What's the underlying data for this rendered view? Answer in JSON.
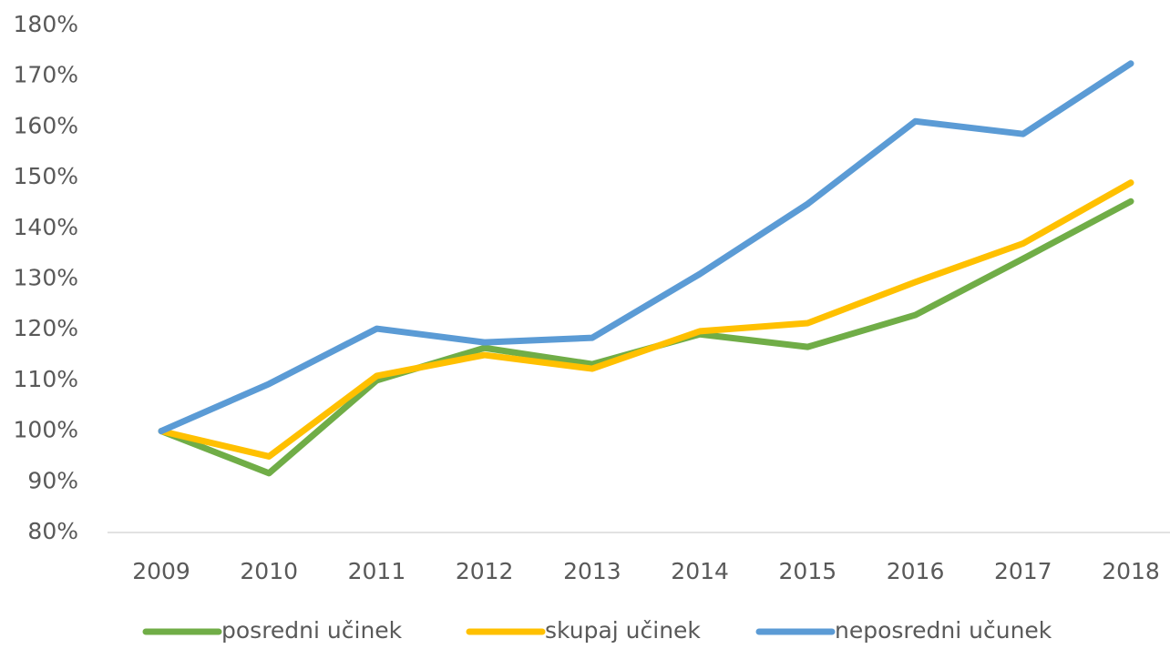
{
  "chart_data": {
    "type": "line",
    "categories": [
      "2009",
      "2010",
      "2011",
      "2012",
      "2013",
      "2014",
      "2015",
      "2016",
      "2017",
      "2018"
    ],
    "series": [
      {
        "name": "posredni učinek",
        "color": "#70ad47",
        "values": [
          100,
          91.7,
          110,
          116.4,
          113.2,
          119.1,
          116.6,
          122.9,
          134,
          145.3
        ]
      },
      {
        "name": "skupaj učinek",
        "color": "#ffc000",
        "values": [
          100,
          95,
          110.9,
          115,
          112.3,
          119.7,
          121.3,
          129.4,
          137,
          149
        ]
      },
      {
        "name": "neposredni učunek",
        "color": "#5b9bd5",
        "values": [
          100,
          109.3,
          120.2,
          117.5,
          118.4,
          131,
          144.8,
          161.1,
          158.6,
          172.5
        ]
      }
    ],
    "ylim": [
      80,
      180
    ],
    "yticks": [
      {
        "value": 80,
        "label": "80%"
      },
      {
        "value": 90,
        "label": "90%"
      },
      {
        "value": 100,
        "label": "100%"
      },
      {
        "value": 110,
        "label": "110%"
      },
      {
        "value": 120,
        "label": "120%"
      },
      {
        "value": 130,
        "label": "130%"
      },
      {
        "value": 140,
        "label": "140%"
      },
      {
        "value": 150,
        "label": "150%"
      },
      {
        "value": 160,
        "label": "160%"
      },
      {
        "value": 170,
        "label": "170%"
      },
      {
        "value": 180,
        "label": "180%"
      }
    ],
    "grid": false,
    "legend": "bottom"
  }
}
